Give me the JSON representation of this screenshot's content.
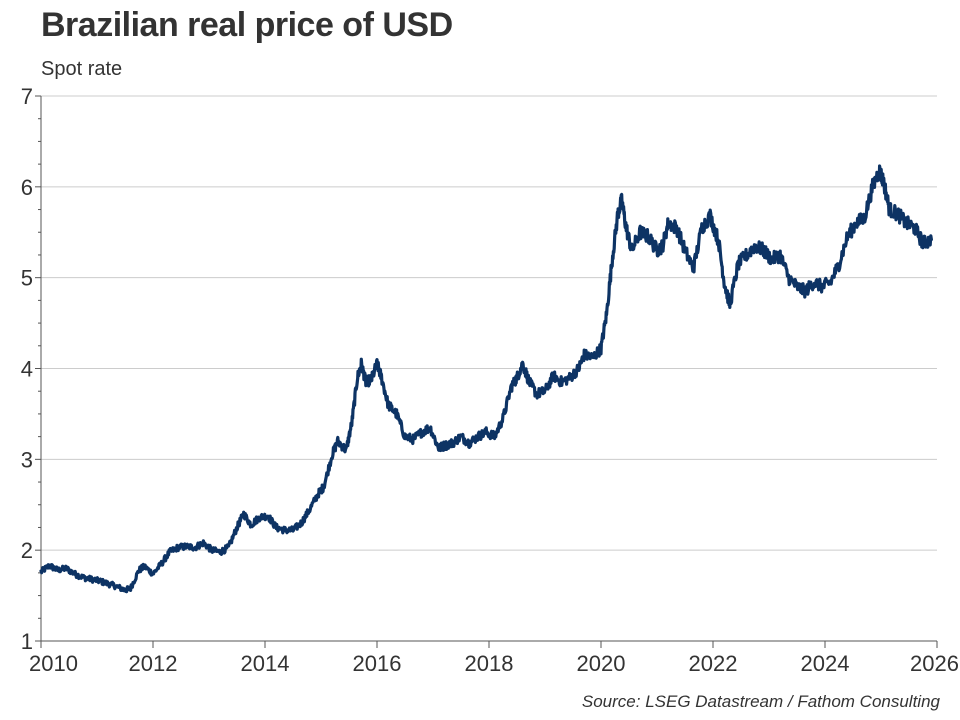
{
  "chart_data": {
    "type": "line",
    "title": "Brazilian real price of USD",
    "subtitle": "Spot rate",
    "source": "Source: LSEG Datastream / Fathom Consulting",
    "xlabel": "",
    "ylabel": "",
    "xlim": [
      2010,
      2026
    ],
    "ylim": [
      1,
      7
    ],
    "x_ticks": [
      "2010",
      "2012",
      "2014",
      "2016",
      "2018",
      "2020",
      "2022",
      "2024",
      "2026"
    ],
    "y_ticks": [
      "1",
      "2",
      "3",
      "4",
      "5",
      "6",
      "7"
    ],
    "grid": "horizontal",
    "legend": "none",
    "series": [
      {
        "color": "#0d3364",
        "x": [
          2010.0,
          2010.15,
          2010.3,
          2010.45,
          2010.6,
          2010.75,
          2010.9,
          2011.05,
          2011.2,
          2011.35,
          2011.5,
          2011.6,
          2011.75,
          2011.85,
          2012.0,
          2012.15,
          2012.3,
          2012.45,
          2012.6,
          2012.75,
          2012.9,
          2013.05,
          2013.2,
          2013.35,
          2013.5,
          2013.62,
          2013.75,
          2013.9,
          2014.05,
          2014.2,
          2014.35,
          2014.5,
          2014.65,
          2014.8,
          2014.95,
          2015.05,
          2015.2,
          2015.3,
          2015.45,
          2015.55,
          2015.65,
          2015.72,
          2015.8,
          2015.9,
          2016.0,
          2016.08,
          2016.2,
          2016.35,
          2016.5,
          2016.65,
          2016.8,
          2016.95,
          2017.1,
          2017.2,
          2017.35,
          2017.5,
          2017.65,
          2017.8,
          2017.95,
          2018.1,
          2018.25,
          2018.4,
          2018.5,
          2018.6,
          2018.72,
          2018.85,
          2019.0,
          2019.15,
          2019.3,
          2019.45,
          2019.6,
          2019.7,
          2019.85,
          2020.0,
          2020.1,
          2020.2,
          2020.3,
          2020.37,
          2020.45,
          2020.55,
          2020.7,
          2020.85,
          2021.0,
          2021.1,
          2021.2,
          2021.35,
          2021.5,
          2021.65,
          2021.8,
          2021.95,
          2022.1,
          2022.2,
          2022.3,
          2022.45,
          2022.6,
          2022.75,
          2022.9,
          2023.05,
          2023.2,
          2023.35,
          2023.5,
          2023.65,
          2023.8,
          2023.95,
          2024.1,
          2024.25,
          2024.4,
          2024.55,
          2024.7,
          2024.85,
          2024.97,
          2025.05,
          2025.15,
          2025.3,
          2025.45,
          2025.6,
          2025.75,
          2025.9
        ],
        "y": [
          1.76,
          1.83,
          1.78,
          1.8,
          1.74,
          1.7,
          1.68,
          1.66,
          1.63,
          1.6,
          1.56,
          1.58,
          1.78,
          1.82,
          1.74,
          1.85,
          1.98,
          2.03,
          2.04,
          2.03,
          2.08,
          2.0,
          1.98,
          2.03,
          2.25,
          2.4,
          2.28,
          2.36,
          2.38,
          2.25,
          2.22,
          2.22,
          2.3,
          2.45,
          2.62,
          2.7,
          3.05,
          3.2,
          3.1,
          3.4,
          3.9,
          4.05,
          3.85,
          3.88,
          4.05,
          3.9,
          3.6,
          3.5,
          3.25,
          3.22,
          3.3,
          3.35,
          3.12,
          3.15,
          3.18,
          3.25,
          3.18,
          3.25,
          3.3,
          3.25,
          3.45,
          3.8,
          3.9,
          4.05,
          3.85,
          3.72,
          3.75,
          3.92,
          3.85,
          3.9,
          4.0,
          4.15,
          4.12,
          4.22,
          4.6,
          5.2,
          5.7,
          5.85,
          5.55,
          5.3,
          5.5,
          5.45,
          5.3,
          5.35,
          5.6,
          5.55,
          5.3,
          5.1,
          5.55,
          5.68,
          5.4,
          4.95,
          4.7,
          5.15,
          5.25,
          5.35,
          5.3,
          5.2,
          5.25,
          5.0,
          4.9,
          4.85,
          4.95,
          4.9,
          4.95,
          5.15,
          5.45,
          5.6,
          5.65,
          6.0,
          6.18,
          6.05,
          5.75,
          5.7,
          5.6,
          5.55,
          5.38,
          5.42
        ]
      }
    ]
  }
}
